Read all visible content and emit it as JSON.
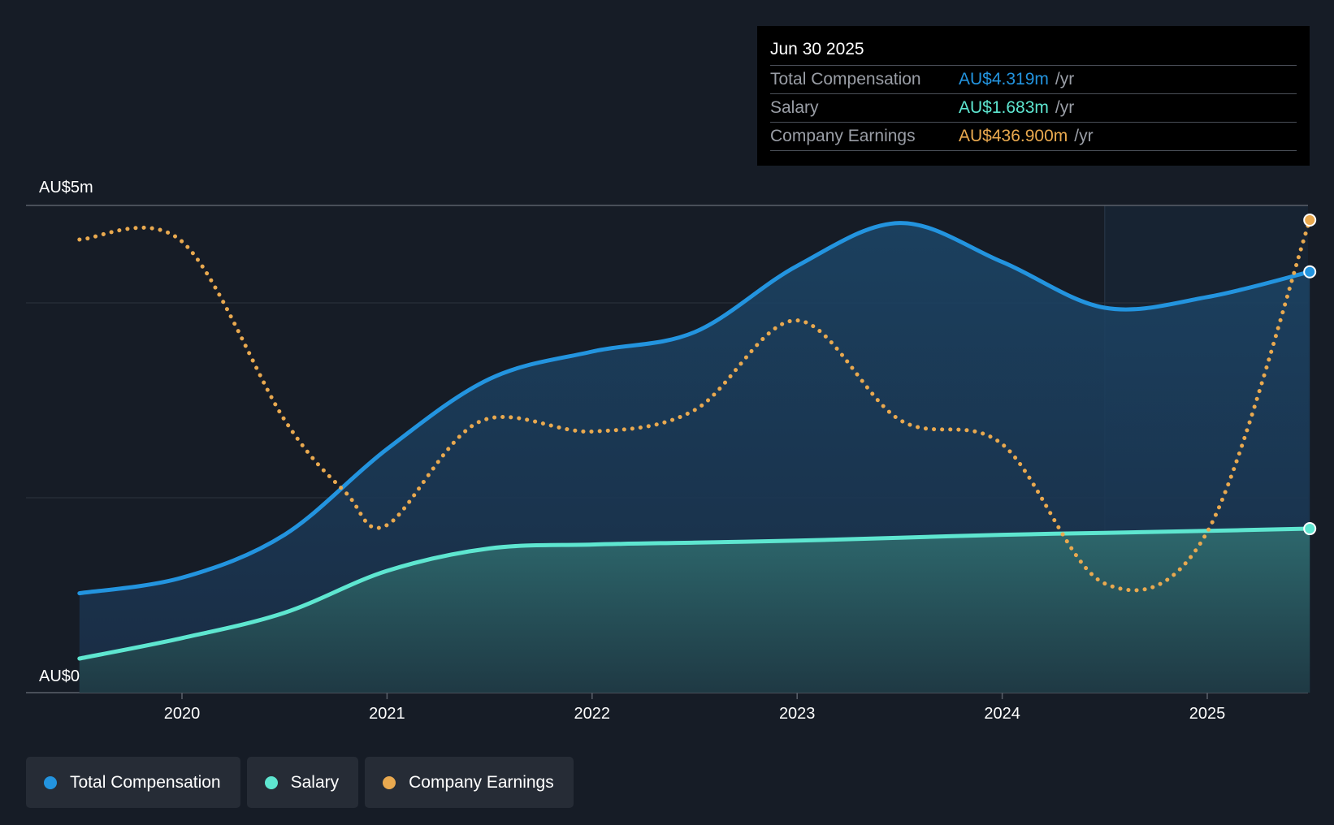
{
  "chart_data": {
    "type": "area",
    "y_axis": {
      "top_label": "AU$5m",
      "bottom_label": "AU$0",
      "ylim": [
        0,
        5
      ]
    },
    "x_axis": {
      "ticks": [
        "2020",
        "2021",
        "2022",
        "2023",
        "2024",
        "2025"
      ],
      "xlim": [
        2019.5,
        2025.5
      ]
    },
    "series": [
      {
        "name": "Total Compensation",
        "color": "#2394df",
        "style": "solid-area",
        "points": [
          [
            2019.5,
            1.02
          ],
          [
            2020.0,
            1.18
          ],
          [
            2020.5,
            1.62
          ],
          [
            2021.0,
            2.5
          ],
          [
            2021.5,
            3.22
          ],
          [
            2022.0,
            3.5
          ],
          [
            2022.5,
            3.7
          ],
          [
            2023.0,
            4.38
          ],
          [
            2023.5,
            4.82
          ],
          [
            2024.0,
            4.42
          ],
          [
            2024.5,
            3.95
          ],
          [
            2025.0,
            4.06
          ],
          [
            2025.5,
            4.319
          ]
        ]
      },
      {
        "name": "Salary",
        "color": "#5ee6d0",
        "style": "solid-area",
        "points": [
          [
            2019.5,
            0.35
          ],
          [
            2020.0,
            0.56
          ],
          [
            2020.5,
            0.82
          ],
          [
            2021.0,
            1.25
          ],
          [
            2021.5,
            1.48
          ],
          [
            2022.0,
            1.52
          ],
          [
            2022.5,
            1.54
          ],
          [
            2023.0,
            1.56
          ],
          [
            2023.5,
            1.59
          ],
          [
            2024.0,
            1.62
          ],
          [
            2024.5,
            1.64
          ],
          [
            2025.0,
            1.66
          ],
          [
            2025.5,
            1.683
          ]
        ]
      },
      {
        "name": "Company Earnings",
        "color": "#e9a94f",
        "style": "dotted",
        "points": [
          [
            2019.5,
            4.65
          ],
          [
            2020.0,
            4.63
          ],
          [
            2020.5,
            2.8
          ],
          [
            2020.8,
            2.05
          ],
          [
            2021.0,
            1.72
          ],
          [
            2021.45,
            2.78
          ],
          [
            2022.0,
            2.68
          ],
          [
            2022.5,
            2.9
          ],
          [
            2023.0,
            3.82
          ],
          [
            2023.5,
            2.8
          ],
          [
            2024.0,
            2.55
          ],
          [
            2024.5,
            1.12
          ],
          [
            2025.0,
            1.65
          ],
          [
            2025.5,
            4.85
          ]
        ]
      }
    ],
    "highlight_start": 2024.5,
    "tooltip": {
      "date": "Jun 30 2025",
      "rows": [
        {
          "label": "Total Compensation",
          "value": "AU$4.319m",
          "unit": "/yr",
          "color": "#2394df"
        },
        {
          "label": "Salary",
          "value": "AU$1.683m",
          "unit": "/yr",
          "color": "#5ee6d0"
        },
        {
          "label": "Company Earnings",
          "value": "AU$436.900m",
          "unit": "/yr",
          "color": "#e9a94f"
        }
      ]
    },
    "legend": [
      {
        "label": "Total Compensation",
        "color": "#2394df"
      },
      {
        "label": "Salary",
        "color": "#5ee6d0"
      },
      {
        "label": "Company Earnings",
        "color": "#e9a94f"
      }
    ]
  }
}
